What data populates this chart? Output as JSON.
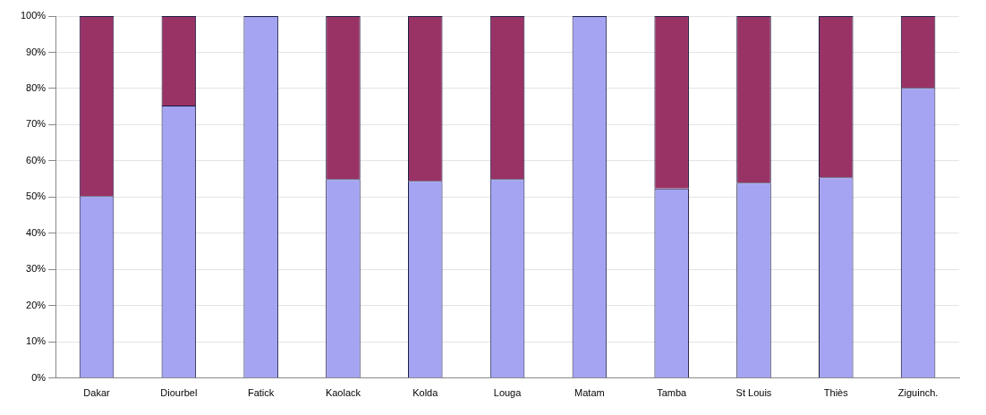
{
  "chart_data": {
    "type": "bar",
    "stacked": true,
    "categories": [
      "Dakar",
      "Diourbel",
      "Fatick",
      "Kaolack",
      "Kolda",
      "Louga",
      "Matam",
      "Tamba",
      "St Louis",
      "Thiès",
      "Ziguinch."
    ],
    "series": [
      {
        "color": "#a4a4f2",
        "values": [
          50.3,
          75.3,
          100,
          55,
          54.5,
          55,
          100,
          52.4,
          54,
          55.5,
          80.2
        ]
      },
      {
        "color": "#993366",
        "values": [
          49.7,
          24.7,
          0,
          45,
          45.5,
          45,
          0,
          47.6,
          46,
          44.5,
          19.8
        ]
      }
    ],
    "ylim": [
      0,
      100
    ],
    "yticks": [
      {
        "value": 0,
        "label": "0%"
      },
      {
        "value": 10,
        "label": "10%"
      },
      {
        "value": 20,
        "label": "20%"
      },
      {
        "value": 30,
        "label": "30%"
      },
      {
        "value": 40,
        "label": "40%"
      },
      {
        "value": 50,
        "label": "50%"
      },
      {
        "value": 60,
        "label": "60%"
      },
      {
        "value": 70,
        "label": "70%"
      },
      {
        "value": 80,
        "label": "80%"
      },
      {
        "value": 90,
        "label": "90%"
      },
      {
        "value": 100,
        "label": "100%"
      }
    ],
    "grid": "y",
    "legend": false
  }
}
